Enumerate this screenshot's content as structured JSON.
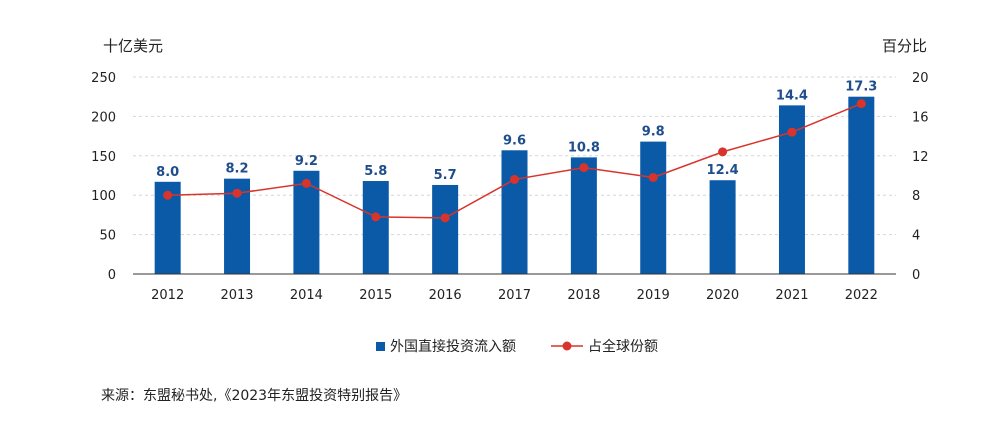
{
  "chart_data": {
    "type": "bar",
    "categories": [
      "2012",
      "2013",
      "2014",
      "2015",
      "2016",
      "2017",
      "2018",
      "2019",
      "2020",
      "2021",
      "2022"
    ],
    "series": [
      {
        "name": "外国直接投资流入额",
        "type": "bar",
        "axis": "left",
        "values": [
          117,
          121,
          131,
          118,
          113,
          157,
          148,
          168,
          119,
          214,
          225
        ],
        "labels": [
          "8.0",
          "8.2",
          "9.2",
          "5.8",
          "5.7",
          "9.6",
          "10.8",
          "9.8",
          "12.4",
          "14.4",
          "17.3"
        ],
        "color": "#0b5aa8"
      },
      {
        "name": "占全球份额",
        "type": "line",
        "axis": "right",
        "values": [
          8.0,
          8.2,
          9.2,
          5.8,
          5.7,
          9.6,
          10.8,
          9.8,
          12.4,
          14.4,
          17.3
        ],
        "color": "#d9342b"
      }
    ],
    "ylabel_left": "十亿美元",
    "ylabel_right": "百分比",
    "ylim_left": [
      0,
      250
    ],
    "ylim_right": [
      0,
      20
    ],
    "yticks_left": [
      "0",
      "50",
      "100",
      "150",
      "200",
      "250"
    ],
    "yticks_right": [
      "0",
      "4",
      "8",
      "12",
      "16",
      "20"
    ],
    "grid": true,
    "legend": "bottom"
  },
  "source_text": "来源：东盟秘书处,《2023年东盟投资特别报告》"
}
